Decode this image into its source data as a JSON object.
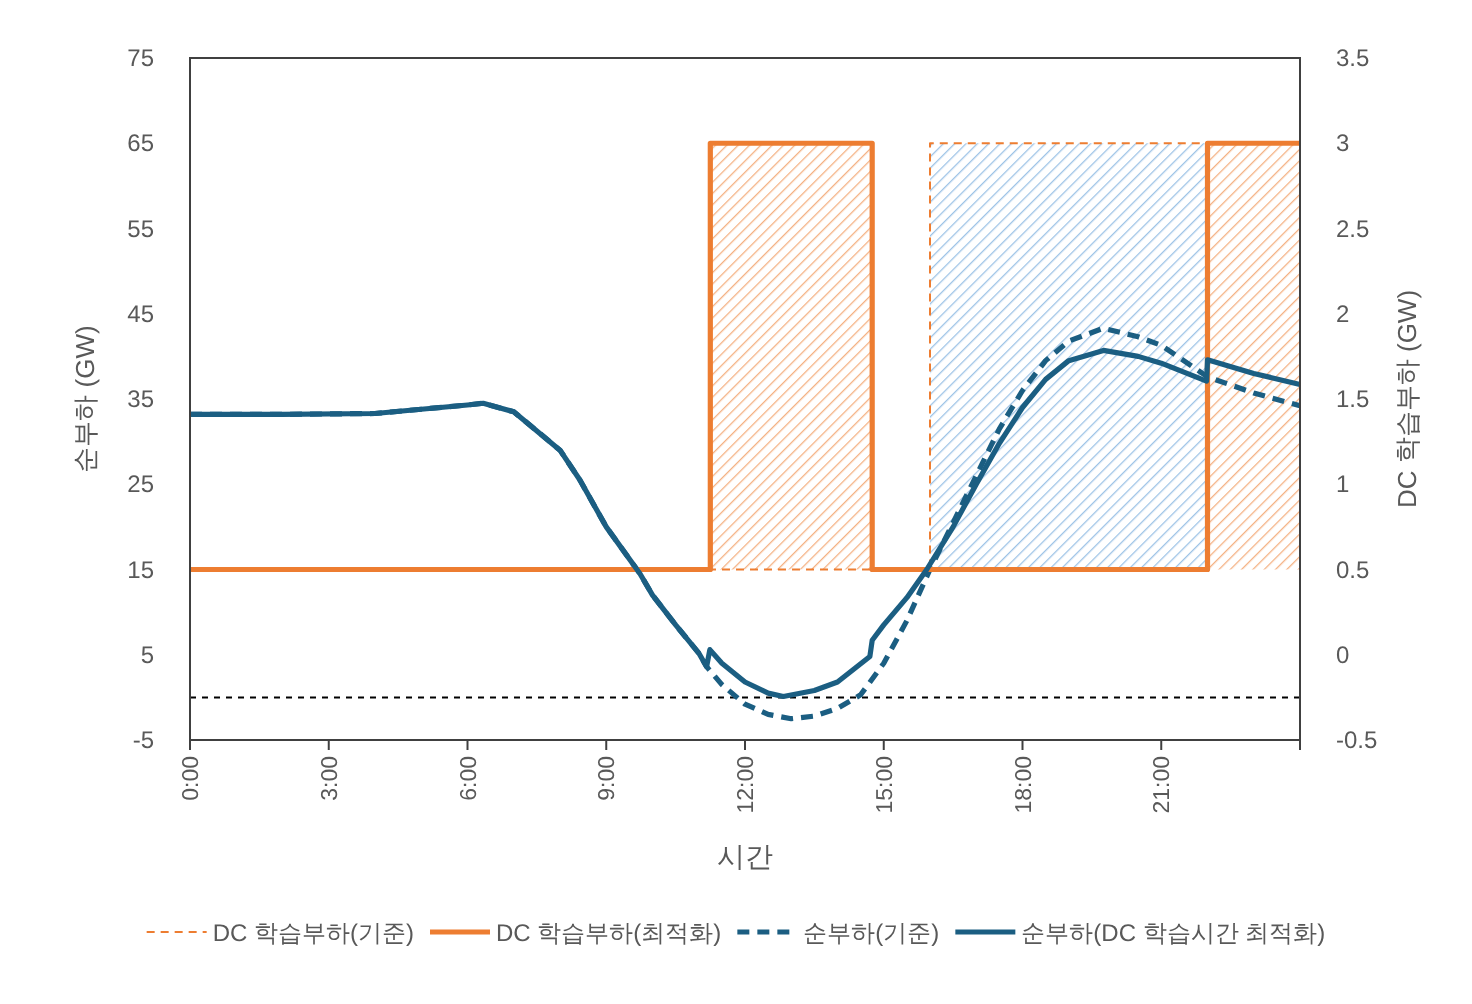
{
  "chart_data": {
    "type": "line",
    "xlabel": "시간",
    "ylabel": "순부하 (GW)",
    "y2label": "DC 학습부하 (GW)",
    "xlim": [
      0,
      24
    ],
    "xticks": [
      {
        "value": 0,
        "label": "0:00"
      },
      {
        "value": 3,
        "label": "3:00"
      },
      {
        "value": 6,
        "label": "6:00"
      },
      {
        "value": 9,
        "label": "9:00"
      },
      {
        "value": 12,
        "label": "12:00"
      },
      {
        "value": 15,
        "label": "15:00"
      },
      {
        "value": 18,
        "label": "18:00"
      },
      {
        "value": 21,
        "label": "21:00"
      },
      {
        "value": 24,
        "label": null
      }
    ],
    "ylim": [
      -5,
      75
    ],
    "yticks": [
      -5,
      5,
      15,
      25,
      35,
      45,
      55,
      65,
      75
    ],
    "y2lim": [
      -0.5,
      3.5
    ],
    "y2ticks": [
      -0.5,
      0,
      0.5,
      1,
      1.5,
      2,
      2.5,
      3,
      3.5
    ],
    "grid": false,
    "legend": "bottom",
    "series": [
      {
        "name": "DC 학습부하(기준)",
        "type": "step",
        "axis": "y2",
        "color": "#ed7d31",
        "line_style": "dashed",
        "x": [
          0,
          16,
          24
        ],
        "values": [
          0.5,
          3,
          3
        ]
      },
      {
        "name": "DC 학습부하(최적화)",
        "type": "step",
        "axis": "y2",
        "color": "#ed7d31",
        "line_style": "solid",
        "x": [
          0,
          11.25,
          14.75,
          22,
          24
        ],
        "values": [
          0.5,
          3,
          0.5,
          3,
          3
        ]
      },
      {
        "name": "순부하(기준)",
        "color": "#1b5e82",
        "line_style": "dashed",
        "x": [
          0,
          2,
          4,
          5,
          6,
          6.34,
          7,
          8,
          8.43,
          9,
          9.73,
          10,
          10.5,
          11,
          11.17,
          11.5,
          12,
          12.5,
          13,
          13.5,
          14,
          14.5,
          15,
          15.5,
          16,
          16.5,
          17,
          17.5,
          18,
          18.5,
          19,
          19.75,
          20.5,
          21,
          22,
          23,
          24
        ],
        "values": [
          33.2,
          33.2,
          33.3,
          33.8,
          34.3,
          34.5,
          33.5,
          29,
          25.5,
          20,
          14.5,
          12,
          8.5,
          5.2,
          3.6,
          1.5,
          -0.8,
          -2,
          -2.5,
          -2.2,
          -1.3,
          0.3,
          4,
          9,
          15,
          20.5,
          26,
          31.5,
          36,
          39.5,
          41.8,
          43.3,
          42.3,
          41.3,
          37.6,
          35.7,
          34.2
        ]
      },
      {
        "name": "순부하(DC 학습시간 최적화)",
        "color": "#1b5e82",
        "line_style": "solid",
        "x": [
          0,
          2,
          4,
          5,
          6,
          6.34,
          7,
          8,
          8.43,
          9,
          9.73,
          10,
          10.5,
          11,
          11.17,
          11.24,
          11.5,
          12,
          12.5,
          12.83,
          13.5,
          14,
          14.7,
          14.75,
          15,
          15.5,
          15.93,
          16.5,
          17,
          17.5,
          18,
          18.5,
          19,
          19.75,
          20.5,
          21,
          21.98,
          22,
          23,
          24
        ],
        "values": [
          33.2,
          33.2,
          33.3,
          33.8,
          34.3,
          34.5,
          33.5,
          29,
          25.5,
          20,
          14.5,
          12,
          8.5,
          5.2,
          3.6,
          5.6,
          4,
          1.8,
          0.5,
          0.1,
          0.8,
          1.8,
          4.8,
          6.7,
          8.5,
          11.7,
          15,
          20,
          25,
          29.8,
          34,
          37.3,
          39.5,
          40.7,
          40,
          39.2,
          37.1,
          39.6,
          38,
          36.7
        ]
      }
    ],
    "bands": [
      {
        "axis": "x",
        "from": 11.25,
        "to": 14.75,
        "color": "#f4b183"
      },
      {
        "axis": "x",
        "from": 16,
        "to": 22,
        "color": "#9dc3e6"
      },
      {
        "axis": "x",
        "from": 22,
        "to": 24,
        "color": "#f4b183"
      }
    ],
    "ref_lines": [
      {
        "axis": "y",
        "value": 0,
        "color": "#000000",
        "line_style": "dashed"
      }
    ]
  }
}
